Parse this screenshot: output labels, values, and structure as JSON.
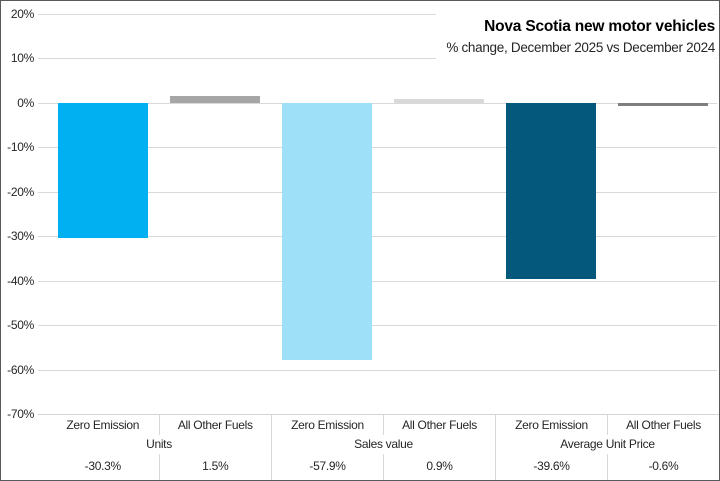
{
  "title": "Nova Scotia new motor vehicles",
  "subtitle": "% change, December 2025 vs December 2024",
  "chart_data": {
    "type": "bar",
    "title": "Nova Scotia new motor vehicles",
    "subtitle": "% change, December 2025 vs December 2024",
    "xlabel": "",
    "ylabel": "",
    "ylim": [
      -70,
      20
    ],
    "yticks": [
      20,
      10,
      0,
      -10,
      -20,
      -30,
      -40,
      -50,
      -60,
      -70
    ],
    "ytick_labels": [
      "20%",
      "10%",
      "0%",
      "-10%",
      "-20%",
      "-30%",
      "-40%",
      "-50%",
      "-60%",
      "-70%"
    ],
    "grid": true,
    "legend": false,
    "categories": [
      "Zero Emission",
      "All Other Fuels",
      "Zero Emission",
      "All Other Fuels",
      "Zero Emission",
      "All Other Fuels"
    ],
    "values": [
      -30.3,
      1.5,
      -57.9,
      0.9,
      -39.6,
      -0.6
    ],
    "groups": [
      {
        "label": "Units",
        "bars": [
          {
            "category": "Zero Emission",
            "value": -30.3,
            "value_label": "-30.3%",
            "color": "#00B0F0"
          },
          {
            "category": "All Other Fuels",
            "value": 1.5,
            "value_label": "1.5%",
            "color": "#A6A6A6"
          }
        ]
      },
      {
        "label": "Sales value",
        "bars": [
          {
            "category": "Zero Emission",
            "value": -57.9,
            "value_label": "-57.9%",
            "color": "#9EE0F8"
          },
          {
            "category": "All Other Fuels",
            "value": 0.9,
            "value_label": "0.9%",
            "color": "#D9D9D9"
          }
        ]
      },
      {
        "label": "Average Unit Price",
        "bars": [
          {
            "category": "Zero Emission",
            "value": -39.6,
            "value_label": "-39.6%",
            "color": "#03587C"
          },
          {
            "category": "All Other Fuels",
            "value": -0.6,
            "value_label": "-0.6%",
            "color": "#7F7F7F"
          }
        ]
      }
    ]
  },
  "colors": {
    "background": "#FFFFFF",
    "gridline": "#D9D9D9",
    "table_line": "#D9D9D9",
    "chart_border": "#595959",
    "axis_text": "#262626",
    "title_text": "#000000"
  }
}
